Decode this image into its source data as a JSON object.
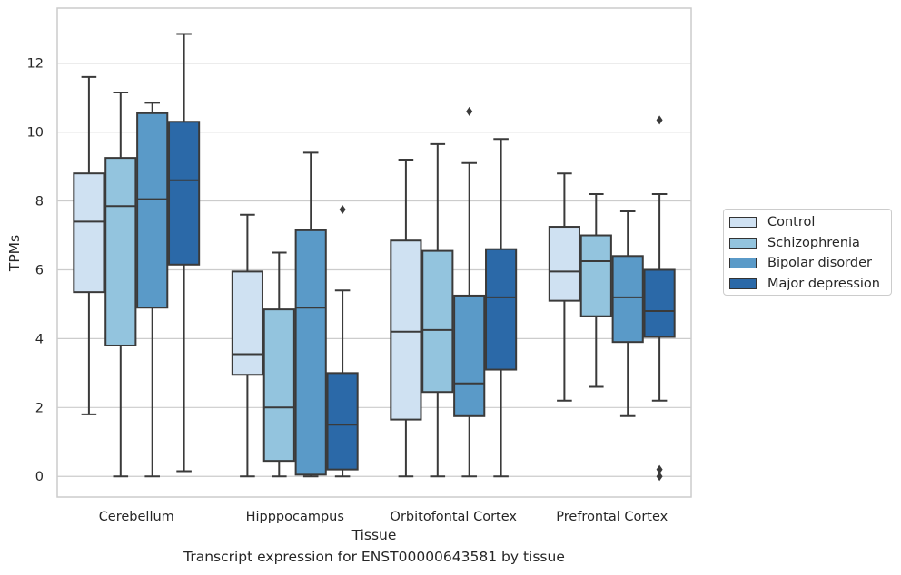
{
  "chart_data": {
    "type": "box",
    "title": "",
    "caption": "Transcript expression for ENST00000643581 by tissue",
    "xlabel": "Tissue",
    "ylabel": "TPMs",
    "ylim": [
      -0.6,
      13.6
    ],
    "yticks": [
      0,
      2,
      4,
      6,
      8,
      10,
      12
    ],
    "grid": true,
    "legend_position": "right",
    "categories": [
      "Cerebellum",
      "Hipppocampus",
      "Orbitofontal Cortex",
      "Prefrontal Cortex"
    ],
    "series": [
      {
        "name": "Control",
        "color": "#cfe1f2",
        "boxes": [
          {
            "whisker_low": 1.8,
            "q1": 5.35,
            "median": 7.4,
            "q3": 8.8,
            "whisker_high": 11.6,
            "outliers": []
          },
          {
            "whisker_low": 0.0,
            "q1": 2.95,
            "median": 3.55,
            "q3": 5.95,
            "whisker_high": 7.6,
            "outliers": []
          },
          {
            "whisker_low": 0.0,
            "q1": 1.65,
            "median": 4.2,
            "q3": 6.85,
            "whisker_high": 9.2,
            "outliers": []
          },
          {
            "whisker_low": 2.2,
            "q1": 5.1,
            "median": 5.95,
            "q3": 7.25,
            "whisker_high": 8.8,
            "outliers": []
          }
        ]
      },
      {
        "name": "Schizophrenia",
        "color": "#93c4de",
        "boxes": [
          {
            "whisker_low": 0.0,
            "q1": 3.8,
            "median": 7.85,
            "q3": 9.25,
            "whisker_high": 11.15,
            "outliers": []
          },
          {
            "whisker_low": 0.0,
            "q1": 0.45,
            "median": 2.0,
            "q3": 4.85,
            "whisker_high": 6.5,
            "outliers": []
          },
          {
            "whisker_low": 0.0,
            "q1": 2.45,
            "median": 4.25,
            "q3": 6.55,
            "whisker_high": 9.65,
            "outliers": []
          },
          {
            "whisker_low": 2.6,
            "q1": 4.65,
            "median": 6.25,
            "q3": 7.0,
            "whisker_high": 8.2,
            "outliers": []
          }
        ]
      },
      {
        "name": "Bipolar disorder",
        "color": "#5a9ac8",
        "boxes": [
          {
            "whisker_low": 0.0,
            "q1": 4.9,
            "median": 8.05,
            "q3": 10.55,
            "whisker_high": 10.85,
            "outliers": []
          },
          {
            "whisker_low": 0.0,
            "q1": 0.05,
            "median": 4.9,
            "q3": 7.15,
            "whisker_high": 9.4,
            "outliers": []
          },
          {
            "whisker_low": 0.0,
            "q1": 1.75,
            "median": 2.7,
            "q3": 5.25,
            "whisker_high": 9.1,
            "outliers": [
              10.6
            ]
          },
          {
            "whisker_low": 1.75,
            "q1": 3.9,
            "median": 5.2,
            "q3": 6.4,
            "whisker_high": 7.7,
            "outliers": []
          }
        ]
      },
      {
        "name": "Major depression",
        "color": "#2b69a8",
        "boxes": [
          {
            "whisker_low": 0.15,
            "q1": 6.15,
            "median": 8.6,
            "q3": 10.3,
            "whisker_high": 12.85,
            "outliers": []
          },
          {
            "whisker_low": 0.0,
            "q1": 0.2,
            "median": 1.5,
            "q3": 3.0,
            "whisker_high": 5.4,
            "outliers": [
              7.75
            ]
          },
          {
            "whisker_low": 0.0,
            "q1": 3.1,
            "median": 5.2,
            "q3": 6.6,
            "whisker_high": 9.8,
            "outliers": []
          },
          {
            "whisker_low": 2.2,
            "q1": 4.05,
            "median": 4.8,
            "q3": 6.0,
            "whisker_high": 8.2,
            "outliers": [
              10.35,
              0.2,
              0.0
            ]
          }
        ]
      }
    ]
  }
}
